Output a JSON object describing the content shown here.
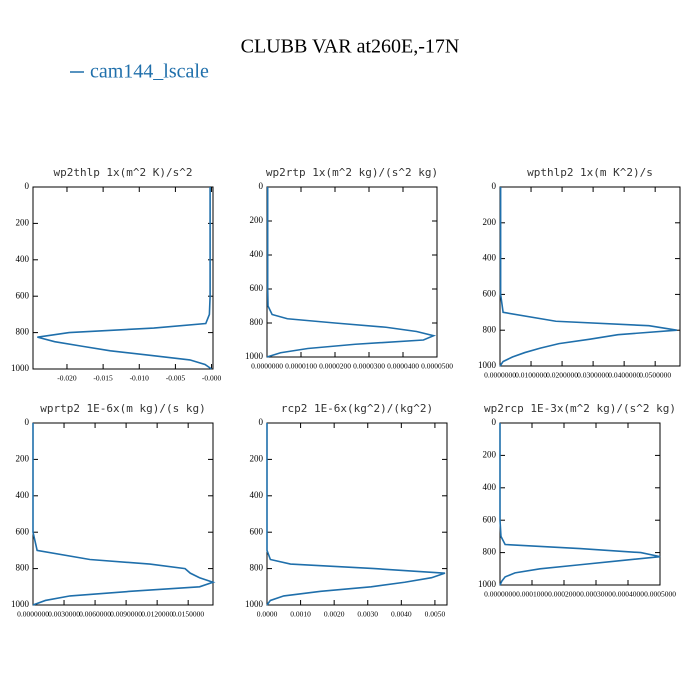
{
  "figure": {
    "title": "CLUBB VAR at260E,-17N",
    "legend": {
      "name": "cam144_lscale",
      "color": "#1f6fab"
    }
  },
  "chart_data": [
    {
      "type": "line",
      "title": "wp2thlp  1x(m^2 K)/s^2",
      "color": "#1f6fab",
      "y": [
        0,
        200,
        400,
        600,
        700,
        750,
        775,
        800,
        825,
        850,
        875,
        900,
        925,
        950,
        975,
        1000
      ],
      "values": [
        -0.0002,
        -0.0002,
        -0.0002,
        -0.0002,
        -0.0003,
        -0.0008,
        -0.008,
        -0.0197,
        -0.0241,
        -0.0217,
        -0.0179,
        -0.014,
        -0.0085,
        -0.003,
        -0.0009,
        0
      ],
      "xlim": [
        -0.0247,
        0.0002
      ],
      "xticks": [
        {
          "value": -0.02,
          "label": "-0.020"
        },
        {
          "value": -0.015,
          "label": "-0.015"
        },
        {
          "value": -0.01,
          "label": "-0.010"
        },
        {
          "value": -0.005,
          "label": "-0.005"
        },
        {
          "value": 0,
          "label": "-0.000"
        }
      ],
      "ylim": [
        1000,
        0
      ],
      "yticks": [
        0,
        200,
        400,
        600,
        800,
        1000
      ]
    },
    {
      "type": "line",
      "title": "wp2rtp  1x(m^2 kg)/(s^2 kg)",
      "color": "#1f6fab",
      "y": [
        0,
        200,
        400,
        600,
        700,
        750,
        775,
        800,
        825,
        850,
        875,
        900,
        925,
        950,
        975,
        1000
      ],
      "values": [
        2e-07,
        2e-07,
        2e-07,
        2e-07,
        3e-07,
        1.5e-06,
        6e-06,
        2e-05,
        3.5e-05,
        4.4e-05,
        4.9e-05,
        4.6e-05,
        2.6e-05,
        1.2e-05,
        4e-06,
        0
      ],
      "xlim": [
        0,
        5e-05
      ],
      "xticks": [
        {
          "value": 0,
          "label": "0.0000000"
        },
        {
          "value": 1e-05,
          "label": "0.0000100"
        },
        {
          "value": 2e-05,
          "label": "0.0000200"
        },
        {
          "value": 3e-05,
          "label": "0.0000300"
        },
        {
          "value": 4e-05,
          "label": "0.0000400"
        },
        {
          "value": 5e-05,
          "label": "0.0000500"
        }
      ],
      "ylim": [
        1000,
        0
      ],
      "yticks": [
        0,
        200,
        400,
        600,
        800,
        1000
      ]
    },
    {
      "type": "line",
      "title": "wpthlp2  1x(m K^2)/s",
      "color": "#1f6fab",
      "y": [
        0,
        200,
        400,
        600,
        700,
        750,
        775,
        800,
        825,
        850,
        875,
        900,
        925,
        950,
        975,
        1000
      ],
      "values": [
        0.0002,
        0.0002,
        0.0002,
        0.0002,
        0.001,
        0.018,
        0.048,
        0.057,
        0.038,
        0.029,
        0.019,
        0.013,
        0.008,
        0.004,
        0.001,
        0
      ],
      "xlim": [
        0,
        0.058
      ],
      "xticks": [
        {
          "value": 0,
          "label": "0.0000000"
        },
        {
          "value": 0.01,
          "label": "0.0100000"
        },
        {
          "value": 0.02,
          "label": "0.0200000"
        },
        {
          "value": 0.03,
          "label": "0.0300000"
        },
        {
          "value": 0.04,
          "label": "0.0400000"
        },
        {
          "value": 0.05,
          "label": "0.0500000"
        }
      ],
      "ylim": [
        1000,
        0
      ],
      "yticks": [
        0,
        200,
        400,
        600,
        800,
        1000
      ]
    },
    {
      "type": "line",
      "title": "wprtp2  1E-6x(m kg)/(s kg)",
      "color": "#1f6fab",
      "y": [
        0,
        200,
        400,
        600,
        700,
        750,
        775,
        800,
        825,
        850,
        875,
        900,
        925,
        950,
        975,
        1000
      ],
      "values": [
        0,
        0,
        0,
        0,
        0.0004,
        0.0055,
        0.0113,
        0.0147,
        0.0152,
        0.0161,
        0.0174,
        0.0161,
        0.0094,
        0.0036,
        0.0012,
        0
      ],
      "xlim": [
        0,
        0.0174
      ],
      "xticks": [
        {
          "value": 0,
          "label": "0.0000000"
        },
        {
          "value": 0.003,
          "label": "0.0030000"
        },
        {
          "value": 0.006,
          "label": "0.0060000"
        },
        {
          "value": 0.009,
          "label": "0.0090000"
        },
        {
          "value": 0.012,
          "label": "0.0120000"
        },
        {
          "value": 0.015,
          "label": "0.0150000"
        }
      ],
      "ylim": [
        1000,
        0
      ],
      "yticks": [
        0,
        200,
        400,
        600,
        800,
        1000
      ]
    },
    {
      "type": "line",
      "title": "rcp2  1E-6x(kg^2)/(kg^2)",
      "color": "#1f6fab",
      "y": [
        0,
        200,
        400,
        600,
        700,
        750,
        775,
        800,
        825,
        850,
        875,
        900,
        925,
        950,
        975,
        1000
      ],
      "values": [
        0,
        0,
        0,
        0,
        0,
        0.0001,
        0.0007,
        0.0032,
        0.0053,
        0.0049,
        0.0041,
        0.0031,
        0.0016,
        0.0005,
        0.0001,
        0
      ],
      "xlim": [
        0,
        0.00536
      ],
      "xticks": [
        {
          "value": 0,
          "label": "0.0000"
        },
        {
          "value": 0.001,
          "label": "0.0010"
        },
        {
          "value": 0.002,
          "label": "0.0020"
        },
        {
          "value": 0.003,
          "label": "0.0030"
        },
        {
          "value": 0.004,
          "label": "0.0040"
        },
        {
          "value": 0.005,
          "label": "0.0050"
        }
      ],
      "ylim": [
        1000,
        0
      ],
      "yticks": [
        0,
        200,
        400,
        600,
        800,
        1000
      ]
    },
    {
      "type": "line",
      "title": "wp2rcp  1E-3x(m^2 kg)/(s^2 kg)",
      "color": "#1f6fab",
      "y": [
        0,
        200,
        400,
        600,
        700,
        750,
        775,
        800,
        825,
        850,
        875,
        900,
        925,
        950,
        975,
        1000
      ],
      "values": [
        0,
        0,
        0,
        0,
        3e-06,
        1.6e-05,
        0.00025,
        0.00044,
        0.0005,
        0.000375,
        0.00025,
        0.000125,
        4.7e-05,
        1.6e-05,
        6e-06,
        0
      ],
      "xlim": [
        0,
        0.0005
      ],
      "xticks": [
        {
          "value": 0,
          "label": "0.0000000"
        },
        {
          "value": 0.0001,
          "label": "0.0001000"
        },
        {
          "value": 0.0002,
          "label": "0.0002000"
        },
        {
          "value": 0.0003,
          "label": "0.0003000"
        },
        {
          "value": 0.0004,
          "label": "0.0004000"
        },
        {
          "value": 0.0005,
          "label": "0.0005000"
        }
      ],
      "ylim": [
        1000,
        0
      ],
      "yticks": [
        0,
        200,
        400,
        600,
        800,
        1000
      ]
    }
  ]
}
